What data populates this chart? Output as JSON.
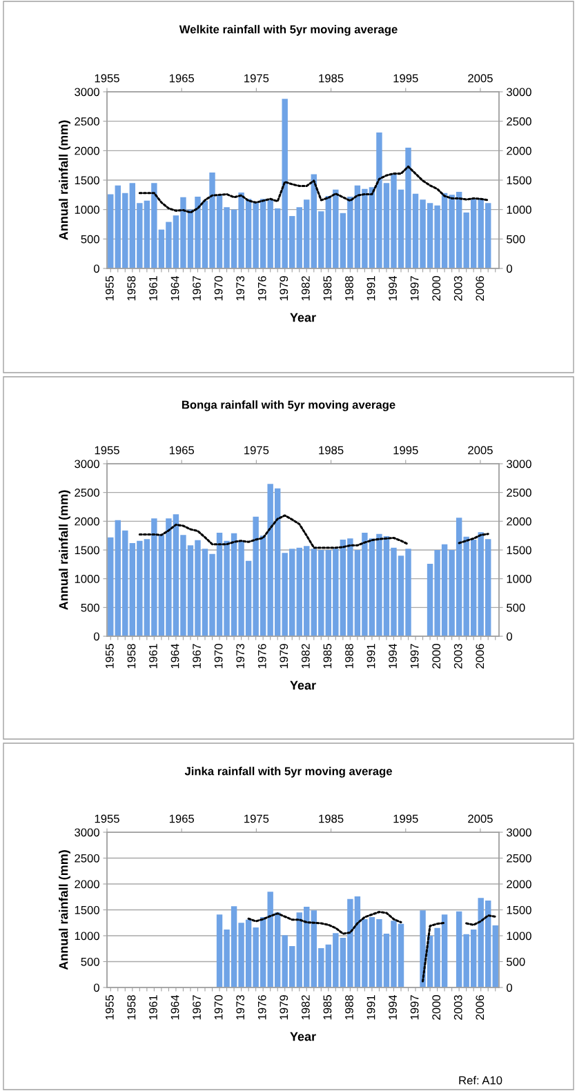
{
  "chart_data": [
    {
      "type": "bar",
      "title": "Welkite rainfall with 5yr moving average",
      "xlabel": "Year",
      "ylabel": "Annual rainfall (mm)",
      "categories": [
        "1955",
        null,
        null,
        "1958",
        null,
        null,
        "1961",
        null,
        null,
        "1964",
        null,
        null,
        "1967",
        null,
        null,
        "1970",
        null,
        null,
        "1973",
        null,
        null,
        "1976",
        null,
        null,
        "1979",
        null,
        null,
        "1982",
        null,
        null,
        "1985",
        null,
        null,
        "1988",
        null,
        null,
        "1991",
        null,
        null,
        "1994",
        null,
        null,
        "1997",
        null,
        null,
        "2000",
        null,
        null,
        "2003",
        null,
        null,
        "2006",
        null,
        null
      ],
      "series": [
        {
          "color": "#6fa3e6",
          "values": [
            1260,
            1410,
            1280,
            1450,
            1110,
            1150,
            1450,
            660,
            790,
            900,
            1210,
            1000,
            1220,
            1150,
            1630,
            1250,
            1040,
            1000,
            1290,
            1180,
            1120,
            1180,
            1160,
            1020,
            2880,
            890,
            1040,
            1170,
            1600,
            970,
            1230,
            1340,
            940,
            1220,
            1410,
            1350,
            1380,
            2310,
            1450,
            1600,
            1340,
            2050,
            1270,
            1170,
            1110,
            1070,
            1280,
            1250,
            1300,
            950,
            1180,
            1190,
            1110,
            null
          ]
        },
        {
          "type": "line",
          "color": "#000000",
          "line_style": "dotted",
          "values": [
            null,
            null,
            null,
            null,
            1280,
            1280,
            1280,
            1120,
            1020,
            980,
            990,
            950,
            1020,
            1160,
            1240,
            1250,
            1260,
            1210,
            1240,
            1150,
            1120,
            1150,
            1180,
            1140,
            1470,
            1430,
            1400,
            1400,
            1490,
            1160,
            1200,
            1270,
            1210,
            1150,
            1240,
            1260,
            1260,
            1520,
            1580,
            1610,
            1610,
            1730,
            1610,
            1490,
            1410,
            1350,
            1230,
            1190,
            1190,
            1170,
            1190,
            1180,
            1160,
            null
          ]
        }
      ],
      "ylim": [
        0,
        3000
      ],
      "yticks": [
        0,
        500,
        1000,
        1500,
        2000,
        2500,
        3000
      ],
      "y2lim": [
        0,
        3000
      ],
      "y2ticks": [
        0,
        500,
        1000,
        1500,
        2000,
        2500,
        3000
      ],
      "x2lim": [
        1955,
        2007.5
      ],
      "x2ticks": [
        1955,
        1965,
        1975,
        1985,
        1995,
        2005
      ],
      "grid": "y",
      "legend": false
    },
    {
      "type": "bar",
      "title": "Bonga rainfall with 5yr moving average",
      "xlabel": "Year",
      "ylabel": "Annual rainfall (mm)",
      "categories": [
        "1955",
        null,
        null,
        "1958",
        null,
        null,
        "1961",
        null,
        null,
        "1964",
        null,
        null,
        "1967",
        null,
        null,
        "1970",
        null,
        null,
        "1973",
        null,
        null,
        "1976",
        null,
        null,
        "1979",
        null,
        null,
        "1982",
        null,
        null,
        "1985",
        null,
        null,
        "1988",
        null,
        null,
        "1991",
        null,
        null,
        "1994",
        null,
        null,
        "1997",
        null,
        null,
        "2000",
        null,
        null,
        "2003",
        null,
        null,
        "2006",
        null,
        null
      ],
      "series": [
        {
          "color": "#6fa3e6",
          "values": [
            1720,
            2020,
            1840,
            1620,
            1660,
            1690,
            2050,
            1760,
            2050,
            2120,
            1760,
            1580,
            1670,
            1520,
            1430,
            1800,
            1660,
            1790,
            1660,
            1310,
            2080,
            1750,
            2650,
            2570,
            1450,
            1520,
            1540,
            1570,
            1520,
            1500,
            1500,
            1520,
            1680,
            1700,
            1500,
            1800,
            1700,
            1780,
            1740,
            1540,
            1400,
            1520,
            null,
            null,
            1260,
            1500,
            1600,
            1500,
            2060,
            1730,
            1680,
            1810,
            1690,
            null
          ]
        },
        {
          "type": "line",
          "color": "#000000",
          "line_style": "dotted",
          "values": [
            null,
            null,
            null,
            null,
            1770,
            1770,
            1770,
            1760,
            1840,
            1940,
            1920,
            1860,
            1830,
            1720,
            1600,
            1600,
            1600,
            1640,
            1660,
            1640,
            1680,
            1710,
            1880,
            2040,
            2100,
            2030,
            1950,
            1750,
            1540,
            1540,
            1540,
            1540,
            1550,
            1580,
            1580,
            1630,
            1670,
            1690,
            1700,
            1710,
            1660,
            1600,
            null,
            null,
            null,
            null,
            null,
            null,
            1620,
            1660,
            1700,
            1760,
            1780,
            null
          ]
        }
      ],
      "ylim": [
        0,
        3000
      ],
      "yticks": [
        0,
        500,
        1000,
        1500,
        2000,
        2500,
        3000
      ],
      "y2lim": [
        0,
        3000
      ],
      "y2ticks": [
        0,
        500,
        1000,
        1500,
        2000,
        2500,
        3000
      ],
      "x2lim": [
        1955,
        2007.5
      ],
      "x2ticks": [
        1955,
        1965,
        1975,
        1985,
        1995,
        2005
      ],
      "grid": "y",
      "legend": false
    },
    {
      "type": "bar",
      "title": "Jinka rainfall with 5yr moving average",
      "xlabel": "Year",
      "ylabel": "Annual rainfall (mm)",
      "categories": [
        "1955",
        null,
        null,
        "1958",
        null,
        null,
        "1961",
        null,
        null,
        "1964",
        null,
        null,
        "1967",
        null,
        null,
        "1970",
        null,
        null,
        "1973",
        null,
        null,
        "1976",
        null,
        null,
        "1979",
        null,
        null,
        "1982",
        null,
        null,
        "1985",
        null,
        null,
        "1988",
        null,
        null,
        "1991",
        null,
        null,
        "1994",
        null,
        null,
        "1997",
        null,
        null,
        "2000",
        null,
        null,
        "2003",
        null,
        null,
        "2006",
        null,
        null
      ],
      "series": [
        {
          "color": "#6fa3e6",
          "values": [
            null,
            null,
            null,
            null,
            null,
            null,
            null,
            null,
            null,
            null,
            null,
            null,
            null,
            null,
            null,
            1410,
            1120,
            1570,
            1250,
            1310,
            1160,
            1360,
            1850,
            1450,
            1010,
            800,
            1450,
            1560,
            1490,
            760,
            830,
            1050,
            960,
            1710,
            1760,
            1320,
            1360,
            1320,
            1040,
            1290,
            1230,
            null,
            null,
            1490,
            1000,
            1150,
            1410,
            null,
            1470,
            1030,
            1120,
            1730,
            1680,
            1200
          ]
        },
        {
          "type": "line",
          "color": "#000000",
          "line_style": "dotted",
          "values": [
            null,
            null,
            null,
            null,
            null,
            null,
            null,
            null,
            null,
            null,
            null,
            null,
            null,
            null,
            null,
            null,
            null,
            null,
            null,
            1330,
            1280,
            1320,
            1380,
            1430,
            1370,
            1310,
            1310,
            1260,
            1250,
            1240,
            1210,
            1150,
            1040,
            1060,
            1240,
            1360,
            1410,
            1460,
            1440,
            1320,
            1260,
            null,
            null,
            120,
            1190,
            1230,
            1250,
            null,
            null,
            1240,
            1210,
            1280,
            1390,
            1370
          ]
        }
      ],
      "ylim": [
        0,
        3000
      ],
      "yticks": [
        0,
        500,
        1000,
        1500,
        2000,
        2500,
        3000
      ],
      "y2lim": [
        0,
        3000
      ],
      "y2ticks": [
        0,
        500,
        1000,
        1500,
        2000,
        2500,
        3000
      ],
      "x2lim": [
        1955,
        2007.5
      ],
      "x2ticks": [
        1955,
        1965,
        1975,
        1985,
        1995,
        2005
      ],
      "grid": "y",
      "legend": false,
      "annotations": [
        "Ref: A10"
      ]
    }
  ]
}
